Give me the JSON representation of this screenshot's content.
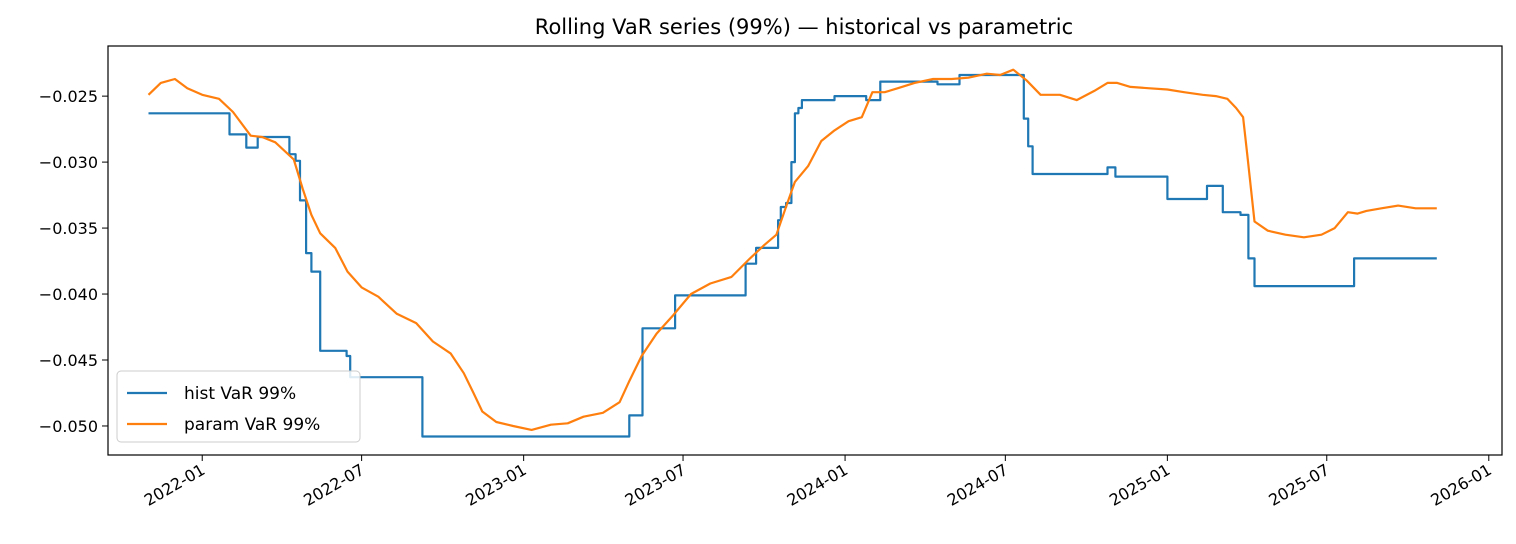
{
  "chart_data": {
    "type": "line",
    "title": "Rolling VaR series (99%) — historical vs parametric",
    "xlabel": "",
    "ylabel": "",
    "xlim": [
      "2021-09-16",
      "2026-01-16"
    ],
    "ylim": [
      -0.0522,
      -0.0212
    ],
    "x_ticks": [
      "2022-01",
      "2022-07",
      "2023-01",
      "2023-07",
      "2024-01",
      "2024-07",
      "2025-01",
      "2025-07",
      "2026-01"
    ],
    "y_ticks": [
      -0.025,
      -0.03,
      -0.035,
      -0.04,
      -0.045,
      -0.05
    ],
    "y_tick_labels": [
      "−0.025",
      "−0.030",
      "−0.035",
      "−0.040",
      "−0.045",
      "−0.050"
    ],
    "grid": false,
    "legend_position": "lower-left",
    "series": [
      {
        "name": "hist VaR 99%",
        "color": "#1f77b4",
        "step": true,
        "x": [
          "2021-11-01",
          "2022-01-01",
          "2022-02-01",
          "2022-02-20",
          "2022-03-05",
          "2022-04-10",
          "2022-04-17",
          "2022-04-22",
          "2022-04-29",
          "2022-05-05",
          "2022-05-10",
          "2022-05-15",
          "2022-06-10",
          "2022-06-14",
          "2022-06-18",
          "2022-09-08",
          "2023-05-01",
          "2023-05-16",
          "2023-06-01",
          "2023-06-22",
          "2023-09-10",
          "2023-09-22",
          "2023-10-17",
          "2023-10-20",
          "2023-10-26",
          "2023-11-01",
          "2023-11-05",
          "2023-11-09",
          "2023-11-13",
          "2023-11-17",
          "2023-12-20",
          "2024-01-15",
          "2024-01-25",
          "2024-02-10",
          "2024-04-15",
          "2024-05-10",
          "2024-07-15",
          "2024-07-22",
          "2024-07-27",
          "2024-08-01",
          "2024-08-05",
          "2024-10-25",
          "2024-11-03",
          "2024-12-01",
          "2025-01-01",
          "2025-02-01",
          "2025-02-15",
          "2025-03-05",
          "2025-03-25",
          "2025-04-03",
          "2025-04-10",
          "2025-08-01",
          "2025-11-03"
        ],
        "y": [
          -0.0263,
          -0.0263,
          -0.0279,
          -0.0289,
          -0.0281,
          -0.0294,
          -0.0299,
          -0.0329,
          -0.0369,
          -0.0383,
          -0.0383,
          -0.0443,
          -0.0443,
          -0.0447,
          -0.0463,
          -0.0508,
          -0.0492,
          -0.0426,
          -0.0426,
          -0.0401,
          -0.0377,
          -0.0365,
          -0.0344,
          -0.0334,
          -0.0331,
          -0.03,
          -0.0263,
          -0.0259,
          -0.0253,
          -0.0253,
          -0.025,
          -0.025,
          -0.0253,
          -0.0239,
          -0.0241,
          -0.0234,
          -0.0234,
          -0.0267,
          -0.0288,
          -0.0309,
          -0.0309,
          -0.0304,
          -0.0311,
          -0.0311,
          -0.0328,
          -0.0328,
          -0.0318,
          -0.0338,
          -0.034,
          -0.0373,
          -0.0394,
          -0.0373,
          -0.0373
        ]
      },
      {
        "name": "param VaR 99%",
        "color": "#ff7f0e",
        "step": false,
        "x": [
          "2021-11-01",
          "2021-11-15",
          "2021-12-01",
          "2021-12-15",
          "2022-01-01",
          "2022-01-20",
          "2022-02-05",
          "2022-02-25",
          "2022-03-10",
          "2022-03-25",
          "2022-04-15",
          "2022-04-25",
          "2022-05-05",
          "2022-05-15",
          "2022-06-01",
          "2022-06-15",
          "2022-07-01",
          "2022-07-20",
          "2022-08-10",
          "2022-09-01",
          "2022-09-20",
          "2022-10-10",
          "2022-10-25",
          "2022-11-05",
          "2022-11-15",
          "2022-12-01",
          "2022-12-20",
          "2023-01-10",
          "2023-02-01",
          "2023-02-20",
          "2023-03-10",
          "2023-04-01",
          "2023-04-20",
          "2023-05-01",
          "2023-05-15",
          "2023-06-01",
          "2023-06-20",
          "2023-07-10",
          "2023-08-01",
          "2023-08-25",
          "2023-09-15",
          "2023-10-01",
          "2023-10-15",
          "2023-10-27",
          "2023-11-05",
          "2023-11-20",
          "2023-12-05",
          "2023-12-20",
          "2024-01-05",
          "2024-01-20",
          "2024-02-01",
          "2024-02-15",
          "2024-03-01",
          "2024-03-20",
          "2024-04-10",
          "2024-05-01",
          "2024-05-20",
          "2024-06-10",
          "2024-06-25",
          "2024-07-10",
          "2024-07-25",
          "2024-08-10",
          "2024-09-01",
          "2024-09-20",
          "2024-10-10",
          "2024-10-25",
          "2024-11-05",
          "2024-11-20",
          "2024-12-10",
          "2025-01-01",
          "2025-01-20",
          "2025-02-10",
          "2025-02-25",
          "2025-03-10",
          "2025-03-20",
          "2025-03-28",
          "2025-04-02",
          "2025-04-10",
          "2025-04-25",
          "2025-05-15",
          "2025-06-05",
          "2025-06-25",
          "2025-07-10",
          "2025-07-25",
          "2025-08-05",
          "2025-08-15",
          "2025-09-01",
          "2025-09-20",
          "2025-10-10",
          "2025-11-03"
        ],
        "y": [
          -0.0249,
          -0.024,
          -0.0237,
          -0.0244,
          -0.0249,
          -0.0252,
          -0.0262,
          -0.028,
          -0.0281,
          -0.0285,
          -0.0298,
          -0.032,
          -0.034,
          -0.0354,
          -0.0365,
          -0.0383,
          -0.0395,
          -0.0402,
          -0.0415,
          -0.0422,
          -0.0436,
          -0.0445,
          -0.046,
          -0.0475,
          -0.0489,
          -0.0497,
          -0.05,
          -0.0503,
          -0.0499,
          -0.0498,
          -0.0493,
          -0.049,
          -0.0482,
          -0.0466,
          -0.0447,
          -0.043,
          -0.0416,
          -0.04,
          -0.0392,
          -0.0387,
          -0.0373,
          -0.0363,
          -0.0355,
          -0.0332,
          -0.0315,
          -0.0303,
          -0.0284,
          -0.0276,
          -0.0269,
          -0.0266,
          -0.0247,
          -0.0247,
          -0.0244,
          -0.024,
          -0.0237,
          -0.0237,
          -0.0236,
          -0.0233,
          -0.0234,
          -0.023,
          -0.0238,
          -0.0249,
          -0.0249,
          -0.0253,
          -0.0246,
          -0.024,
          -0.024,
          -0.0243,
          -0.0244,
          -0.0245,
          -0.0247,
          -0.0249,
          -0.025,
          -0.0252,
          -0.0259,
          -0.0266,
          -0.0296,
          -0.0345,
          -0.0352,
          -0.0355,
          -0.0357,
          -0.0355,
          -0.035,
          -0.0338,
          -0.0339,
          -0.0337,
          -0.0335,
          -0.0333,
          -0.0335,
          -0.0335
        ]
      }
    ]
  }
}
